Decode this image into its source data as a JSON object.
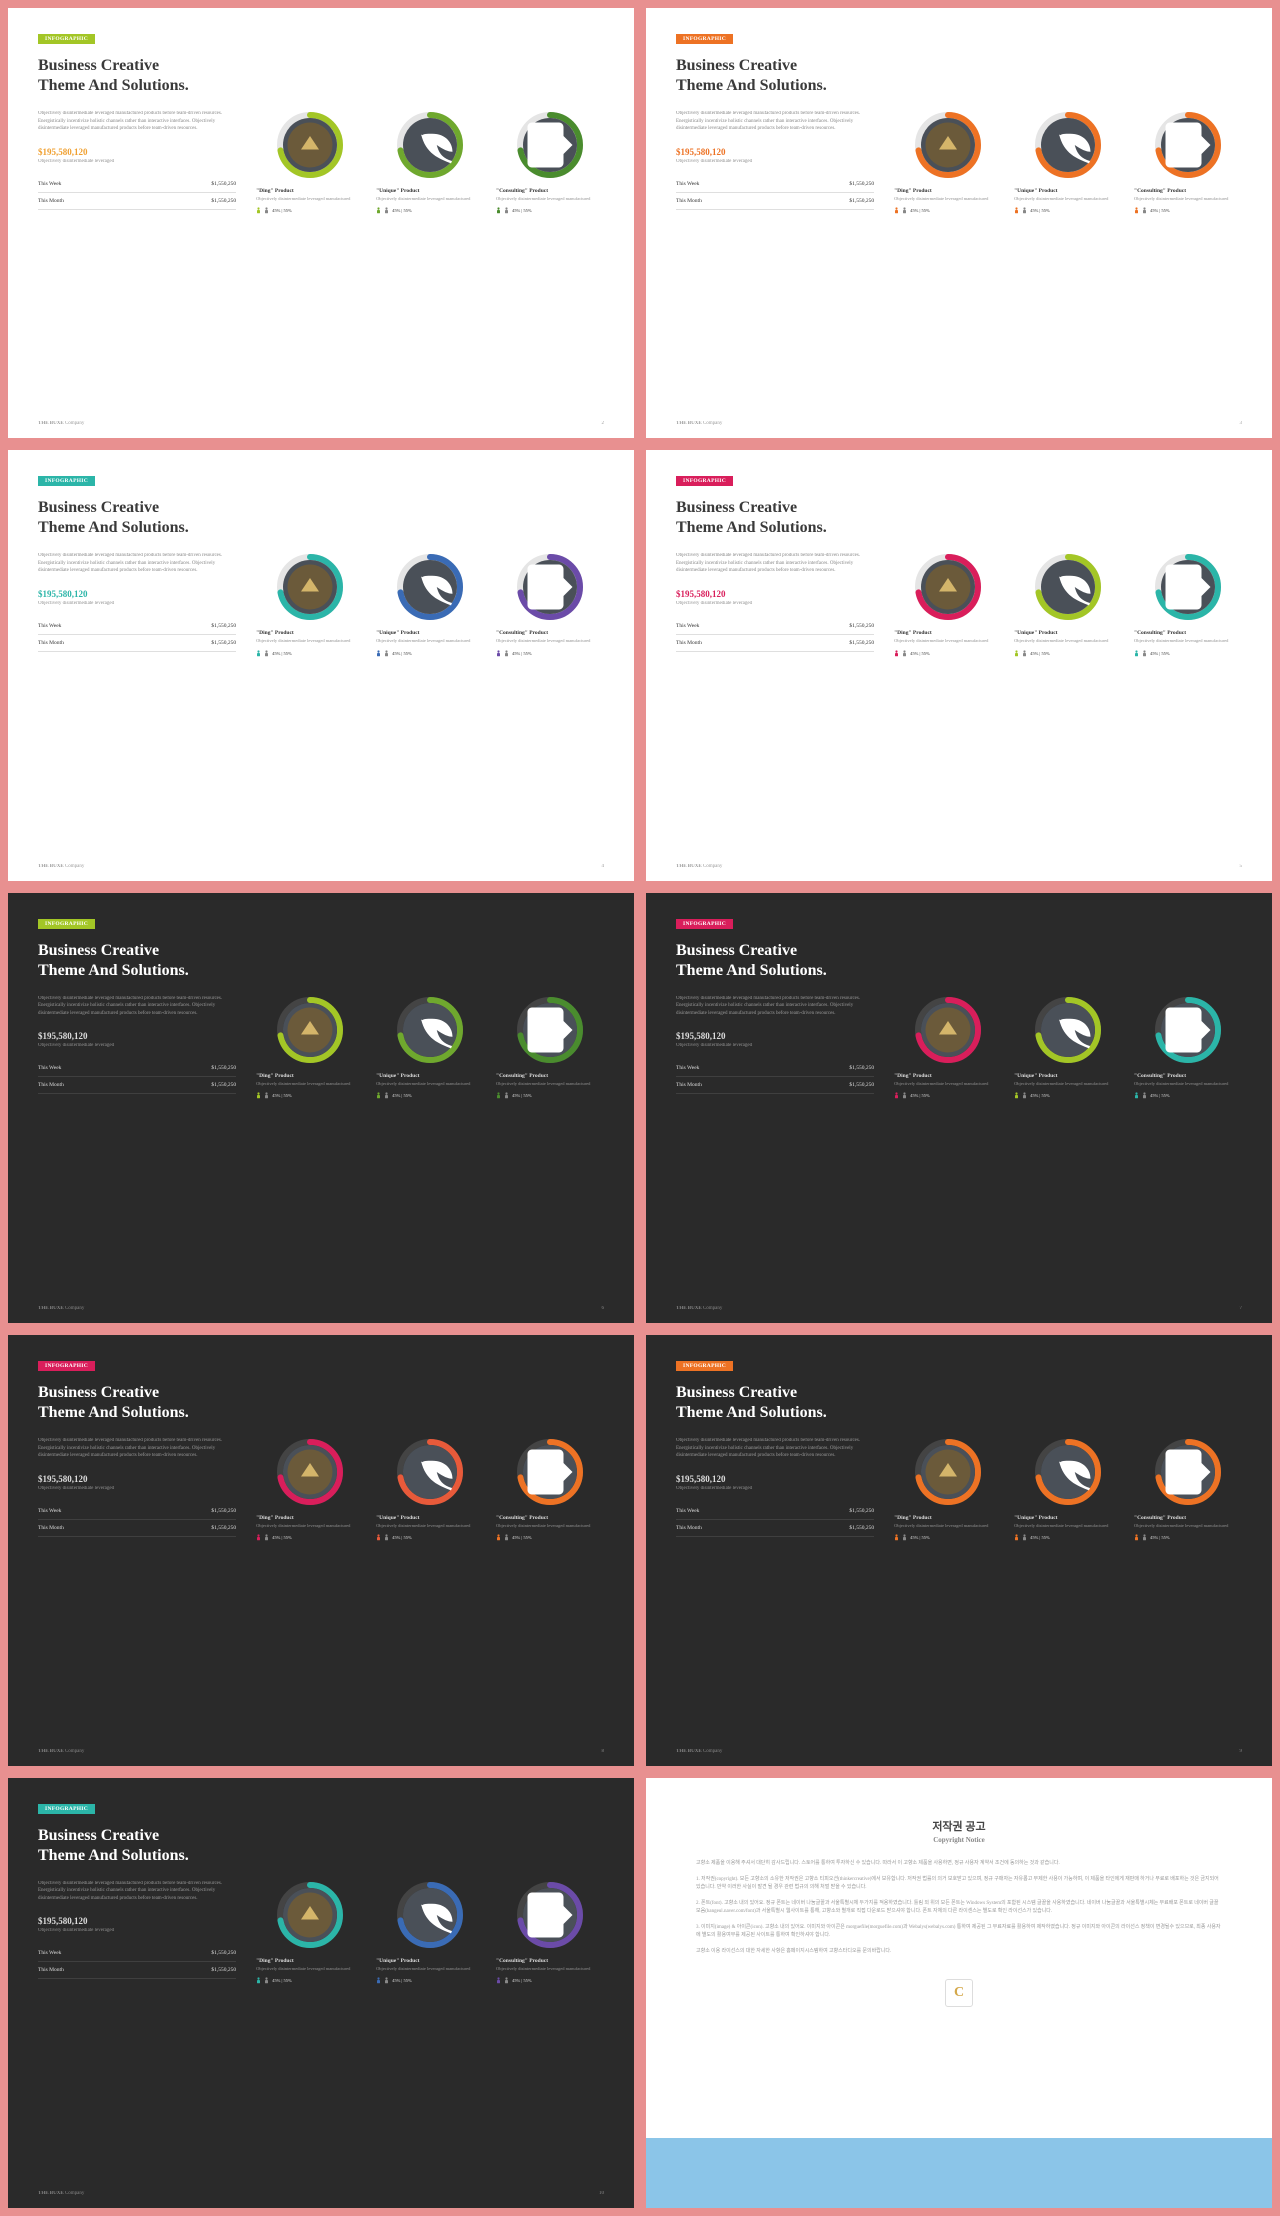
{
  "badge_text": "INFOGRAPHIC",
  "title_l1": "Business Creative",
  "title_l2": "Theme And Solutions.",
  "desc": "Objectively disintermediate leveraged manufactured products before team-driven resources. Energistically incentivize holistic channels rather than interactive interfaces. Objectively disintermediate leveraged manufactured products before team-driven resources.",
  "figure": "$195,580,120",
  "fsub": "Objectively disintermediate leveraged",
  "week_label": "This Week",
  "week_val": "$1,550,250",
  "month_label": "This Month",
  "month_val": "$1,550,250",
  "products": [
    {
      "name": "\"Ding\" Product",
      "desc": "Objectively disintermediate leveraged manufactured",
      "stat": "45% | 55%",
      "icon": "play"
    },
    {
      "name": "\"Unique\" Product",
      "desc": "Objectively disintermediate leveraged manufactured",
      "stat": "45% | 55%",
      "icon": "leaf"
    },
    {
      "name": "\"Consulting\" Product",
      "desc": "Objectively disintermediate leveraged manufactured",
      "stat": "45% | 55%",
      "icon": "chat"
    }
  ],
  "footer_brand": "THE BUXE",
  "footer_co": "Company",
  "donut_track_light": "#e5e5e5",
  "donut_track_dark": "#444",
  "inner_bg": "#4a5058",
  "arc_pct": 72,
  "person_color_alt": "#888",
  "slides": [
    {
      "bg": "light",
      "accent": "#a3c626",
      "figure_color": "#f0a030",
      "badge_bg": "#a3c626",
      "d1": "#a3c626",
      "d2": "#6fa82e",
      "d3": "#4a8c2e",
      "p1": "#a3c626",
      "p2": "#6fa82e",
      "p3": "#4a8c2e",
      "num": "2"
    },
    {
      "bg": "light",
      "accent": "#ed7224",
      "figure_color": "#ed7224",
      "badge_bg": "#ed7224",
      "d1": "#ed7224",
      "d2": "#ed7224",
      "d3": "#ed7224",
      "p1": "#ed7224",
      "p2": "#ed7224",
      "p3": "#ed7224",
      "num": "3"
    },
    {
      "bg": "light",
      "accent": "#2bb5a8",
      "figure_color": "#2bb5a8",
      "badge_bg": "#2bb5a8",
      "d1": "#2bb5a8",
      "d2": "#3a6bb5",
      "d3": "#6b4ba8",
      "p1": "#2bb5a8",
      "p2": "#3a6bb5",
      "p3": "#6b4ba8",
      "num": "4"
    },
    {
      "bg": "light",
      "accent": "#d91e5b",
      "figure_color": "#d91e5b",
      "badge_bg": "#d91e5b",
      "d1": "#d91e5b",
      "d2": "#a3c626",
      "d3": "#2bb5a8",
      "p1": "#d91e5b",
      "p2": "#a3c626",
      "p3": "#2bb5a8",
      "num": "5"
    },
    {
      "bg": "dark",
      "accent": "#a3c626",
      "figure_color": "#ddd",
      "badge_bg": "#a3c626",
      "d1": "#a3c626",
      "d2": "#6fa82e",
      "d3": "#4a8c2e",
      "p1": "#a3c626",
      "p2": "#6fa82e",
      "p3": "#4a8c2e",
      "num": "6"
    },
    {
      "bg": "dark",
      "accent": "#d91e5b",
      "figure_color": "#ddd",
      "badge_bg": "#d91e5b",
      "d1": "#d91e5b",
      "d2": "#a3c626",
      "d3": "#2bb5a8",
      "p1": "#d91e5b",
      "p2": "#a3c626",
      "p3": "#2bb5a8",
      "num": "7"
    },
    {
      "bg": "dark",
      "accent": "#d91e5b",
      "figure_color": "#ddd",
      "badge_bg": "#d91e5b",
      "d1": "#d91e5b",
      "d2": "#e85a3a",
      "d3": "#ed7224",
      "p1": "#d91e5b",
      "p2": "#e85a3a",
      "p3": "#ed7224",
      "num": "8"
    },
    {
      "bg": "dark",
      "accent": "#ed7224",
      "figure_color": "#ddd",
      "badge_bg": "#ed7224",
      "d1": "#ed7224",
      "d2": "#ed7224",
      "d3": "#ed7224",
      "p1": "#ed7224",
      "p2": "#ed7224",
      "p3": "#ed7224",
      "num": "9"
    },
    {
      "bg": "dark",
      "accent": "#2bb5a8",
      "figure_color": "#ddd",
      "badge_bg": "#2bb5a8",
      "d1": "#2bb5a8",
      "d2": "#3a6bb5",
      "d3": "#6b4ba8",
      "p1": "#2bb5a8",
      "p2": "#3a6bb5",
      "p3": "#6b4ba8",
      "num": "10"
    }
  ],
  "notice": {
    "title": "저작권 공고",
    "sub": "Copyright Notice",
    "p1": "고향소 제품을 이용해 주셔서 대단히 감사드립니다. 스토어를 통하여 투자하신 수 있습니다. 따라서 이 고향소 제품을 사용하면, 정규 사용자 계약서 조건에 동의하는 것과 같습니다.",
    "p2": "1. 저작권(copyright). 모든 고향소의 소유한 저작권은 고향소 티피오션(thinkercreative)에서 보유합니다. 저작권 법률의 의거 보호받고 있으며, 정규 구매자는 자유롭고 무제한 사용이 가능하며, 이 제품을 타인에게 재판매 하거나 무료로 배포하는 것은 금지되어 있습니다. 만약 이러한 사실이 발견 될 경우 관련 법규의 의해 처벌 받을 수 있습니다.",
    "p3": "2. 폰트(font). 고향소 내의 있어요. 정규 폰트는 네이버 나눔글꼴과 서울특별시체 두가지를 적용하였습니다. 틀림 외 위의 모든 폰트는 Windows System의 포함된 시스템 글꼴을 사용하였습니다. 네이버 나눔글꼴과 서울특별시체는 무료배포 폰트로 네이버 글꼴모음(hangeul.naver.com/font)과 서울특별시 웹사이트를 통해, 고향소와 별개로 직접 다운로드 받으셔야 합니다. 폰트 자체의 다른 라이센스는 별도로 확인 라이선스가 있습니다.",
    "p4": "3. 이미지(image) & 아이콘(icon). 고향소 내의 있어요. 이미지와 아이콘은 morguefile(morguefile.com)과 Webalys(webalys.com) 통하여 제공된 그 무료자료를 활용하여 제작하였습니다. 정규 이미지와 아이콘의 라이선스 정책이 변경될수 있으므로, 최종 사용자에 별도의 활용여부를 제공된 사이트를 통하여 확인하셔야 합니다.",
    "p5": "고향소 이용 라이선스의 대한 자세한 사항은 홈페이지시스템하여 고향스타디오를 문의바랍니다.",
    "logo": "C"
  }
}
